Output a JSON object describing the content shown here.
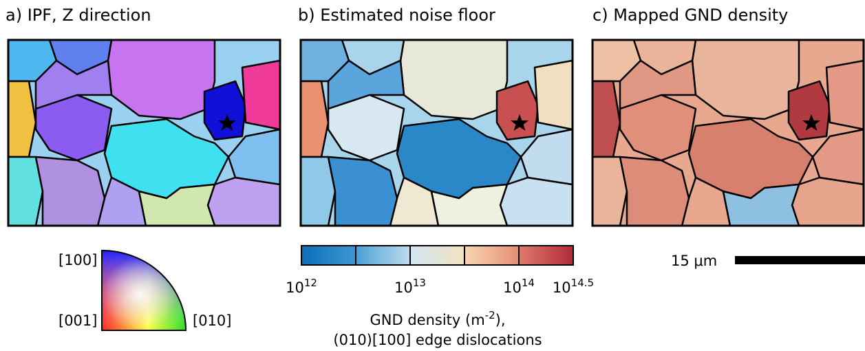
{
  "panels": [
    {
      "title": "a) IPF, Z direction"
    },
    {
      "title": "b) Estimated noise floor"
    },
    {
      "title": "c) Mapped GND density"
    }
  ],
  "ipf_key": {
    "labels": [
      "[100]",
      "[001]",
      "[010]"
    ]
  },
  "colorbar": {
    "ticks": [
      {
        "base": "10",
        "exp": "12"
      },
      {
        "base": "10",
        "exp": "13"
      },
      {
        "base": "10",
        "exp": "14"
      },
      {
        "base": "10",
        "exp": "14.5"
      }
    ],
    "label": {
      "text": "GND density (m",
      "sup": "-2",
      "tail": "),"
    },
    "label_line2": "(010)[100] edge dislocations"
  },
  "scale_bar": {
    "label": "15 μm"
  }
}
